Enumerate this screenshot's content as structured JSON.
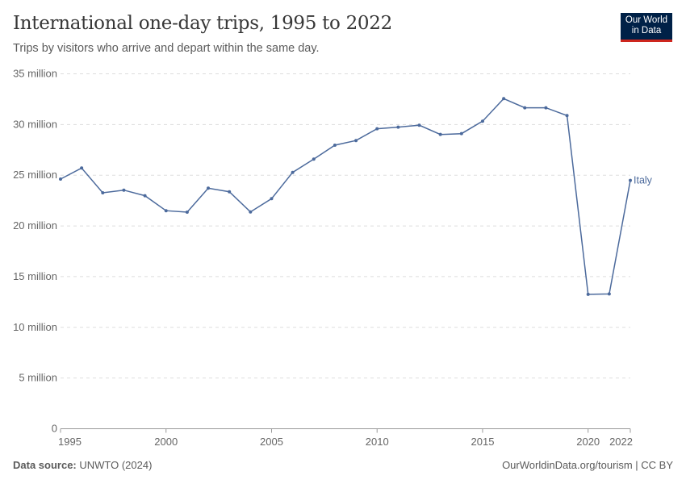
{
  "title": "International one-day trips, 1995 to 2022",
  "subtitle": "Trips by visitors who arrive and depart within the same day.",
  "logo": {
    "line1": "Our World",
    "line2": "in Data"
  },
  "footer": {
    "source_label": "Data source:",
    "source": "UNWTO (2024)",
    "right": "OurWorldinData.org/tourism | CC BY"
  },
  "chart_data": {
    "type": "line",
    "title": "International one-day trips, 1995 to 2022",
    "xlim": [
      1995,
      2022
    ],
    "ylim": [
      0,
      35000000
    ],
    "grid": true,
    "x_ticks": [
      1995,
      2000,
      2005,
      2010,
      2015,
      2020,
      2022
    ],
    "y_ticks": [
      0,
      5000000,
      10000000,
      15000000,
      20000000,
      25000000,
      30000000,
      35000000
    ],
    "y_tick_labels": [
      "0",
      "5 million",
      "10 million",
      "15 million",
      "20 million",
      "25 million",
      "30 million",
      "35 million"
    ],
    "color": "#4c6a9c",
    "series": [
      {
        "name": "Italy",
        "x": [
          1995,
          1996,
          1997,
          1998,
          1999,
          2000,
          2001,
          2002,
          2003,
          2004,
          2005,
          2006,
          2007,
          2008,
          2009,
          2010,
          2011,
          2012,
          2013,
          2014,
          2015,
          2016,
          2017,
          2018,
          2019,
          2020,
          2021,
          2022
        ],
        "values": [
          24620000,
          25710000,
          23270000,
          23530000,
          22980000,
          21500000,
          21360000,
          23720000,
          23370000,
          21380000,
          22690000,
          25280000,
          26590000,
          27960000,
          28420000,
          29580000,
          29740000,
          29930000,
          29020000,
          29100000,
          30330000,
          32550000,
          31650000,
          31650000,
          30880000,
          13250000,
          13290000,
          24490000
        ]
      }
    ]
  }
}
